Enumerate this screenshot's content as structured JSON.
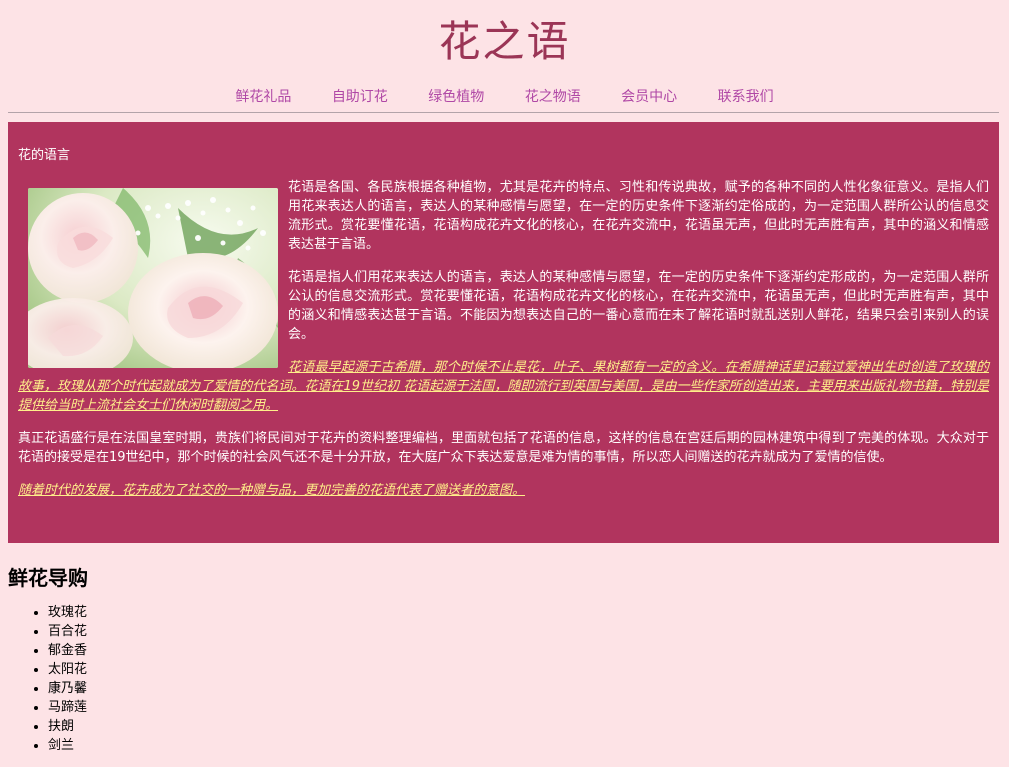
{
  "site_title": "花之语",
  "nav": [
    {
      "label": "鲜花礼品"
    },
    {
      "label": "自助订花"
    },
    {
      "label": "绿色植物"
    },
    {
      "label": "花之物语"
    },
    {
      "label": "会员中心"
    },
    {
      "label": "联系我们"
    }
  ],
  "panel": {
    "heading": "花的语言",
    "paragraphs": [
      "花语是各国、各民族根据各种植物，尤其是花卉的特点、习性和传说典故，赋予的各种不同的人性化象征意义。是指人们用花来表达人的语言，表达人的某种感情与愿望，在一定的历史条件下逐渐约定俗成的，为一定范围人群所公认的信息交流形式。赏花要懂花语，花语构成花卉文化的核心，在花卉交流中，花语虽无声，但此时无声胜有声，其中的涵义和情感表达甚于言语。",
      "花语是指人们用花来表达人的语言，表达人的某种感情与愿望，在一定的历史条件下逐渐约定形成的，为一定范围人群所公认的信息交流形式。赏花要懂花语，花语构成花卉文化的核心，在花卉交流中，花语虽无声，但此时无声胜有声，其中的涵义和情感表达甚于言语。不能因为想表达自己的一番心意而在未了解花语时就乱送别人鲜花，结果只会引来别人的误会。",
      "花语最早起源于古希腊，那个时候不止是花，叶子、果树都有一定的含义。在希腊神话里记载过爱神出生时创造了玫瑰的故事，玫瑰从那个时代起就成为了爱情的代名词。花语在19世纪初 花语起源于法国，随即流行到英国与美国，是由一些作家所创造出来，主要用来出版礼物书籍，特别是提供给当时上流社会女士们休闲时翻阅之用。",
      "真正花语盛行是在法国皇室时期，贵族们将民间对于花卉的资料整理编档，里面就包括了花语的信息，这样的信息在宫廷后期的园林建筑中得到了完美的体现。大众对于花语的接受是在19世纪中，那个时候的社会风气还不是十分开放，在大庭广众下表达爱意是难为情的事情，所以恋人间赠送的花卉就成为了爱情的信使。",
      "随着时代的发展，花卉成为了社交的一种赠与品，更加完善的花语代表了赠送者的意图。"
    ]
  },
  "guide": {
    "heading": "鲜花导购",
    "items": [
      "玫瑰花",
      "百合花",
      "郁金香",
      "太阳花",
      "康乃馨",
      "马蹄莲",
      "扶朗",
      "剑兰"
    ]
  },
  "colors": {
    "background": "#fde3e6",
    "panel": "#b1345e",
    "title": "#9b3556",
    "nav_link": "#b048a6",
    "highlight_text": "#ffef8a"
  }
}
